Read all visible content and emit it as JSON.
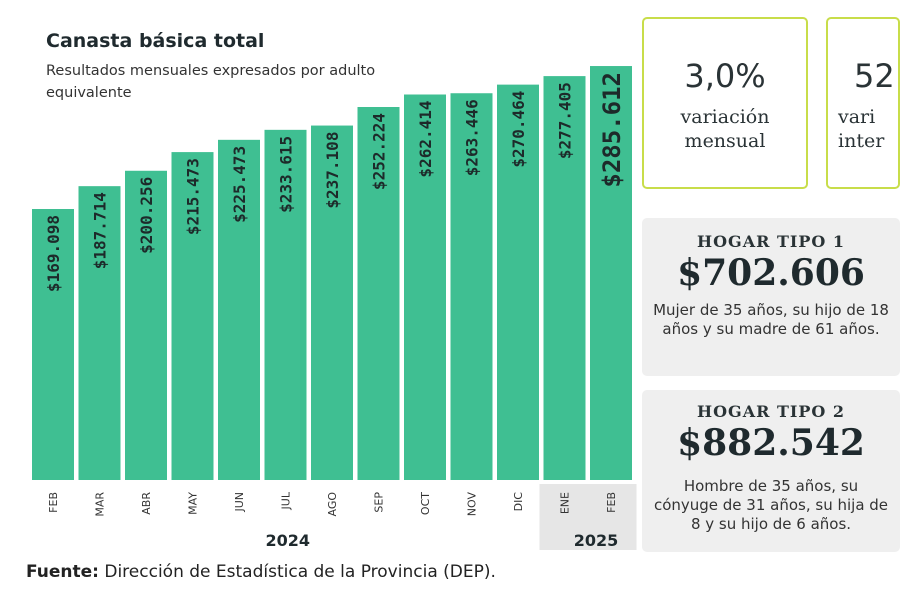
{
  "chart_data": {
    "type": "bar",
    "title": "Canasta básica total",
    "subtitle": "Resultados mensuales expresados por adulto equivalente",
    "categories": [
      "FEB",
      "MAR",
      "ABR",
      "MAY",
      "JUN",
      "JUL",
      "AGO",
      "SEP",
      "OCT",
      "NOV",
      "DIC",
      "ENE",
      "FEB"
    ],
    "years": [
      {
        "label": "2024",
        "months": 11
      },
      {
        "label": "2025",
        "months": 2
      }
    ],
    "values": [
      169098,
      187714,
      200256,
      215473,
      225473,
      233615,
      237108,
      252224,
      262414,
      263446,
      270464,
      277405,
      285612
    ],
    "data_labels": [
      "$169.098",
      "$187.714",
      "$200.256",
      "$215.473",
      "$225.473",
      "$233.615",
      "$237.108",
      "$252.224",
      "$262.414",
      "$263.446",
      "$270.464",
      "$277.405",
      "$285.612"
    ],
    "bar_color": "#3fbf92",
    "grid": false
  },
  "source": {
    "label": "Fuente:",
    "text": " Dirección de Estadística de la Provincia (DEP)."
  },
  "kpis": [
    {
      "value": "3,0%",
      "label1": "variación",
      "label2": "mensual"
    },
    {
      "value": "52",
      "label1": "vari",
      "label2": "inter"
    }
  ],
  "hogares": [
    {
      "title": "HOGAR TIPO 1",
      "price": "$702.606",
      "desc": "Mujer de 35 años, su hijo de 18 años y su madre de 61 años."
    },
    {
      "title": "HOGAR TIPO 2",
      "price": "$882.542",
      "desc": "Hombre de 35 años, su cónyuge de 31 años, su hija de 8 y su hijo de 6 años."
    }
  ]
}
